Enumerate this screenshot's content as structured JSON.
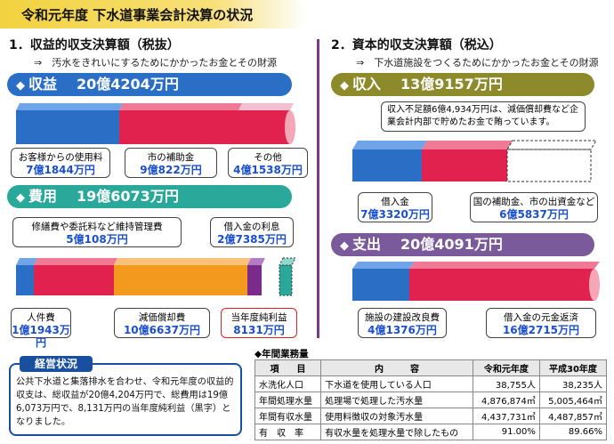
{
  "title": "令和元年度 下水道事業会計決算の状況",
  "left": {
    "heading": "1．収益的収支決算額（税抜）",
    "note": "⇒　汚水をきれいにするためにかかったお金とその財源",
    "revenue_label": "収益",
    "revenue_total": "20億4204万円",
    "revenue_items": [
      {
        "label": "お客様からの使用料",
        "value": "7億1844万円"
      },
      {
        "label": "市の補助金",
        "value": "9億822万円"
      },
      {
        "label": "その他",
        "value": "4億1538万円"
      }
    ],
    "expense_label": "費用",
    "expense_total": "19億6073万円",
    "expense_items": [
      {
        "label": "修繕費や委託料など維持管理費",
        "value": "5億108万円"
      },
      {
        "label": "借入金の利息",
        "value": "2億7385万円"
      },
      {
        "label": "人件費",
        "value": "1億1943万円"
      },
      {
        "label": "減価償却費",
        "value": "10億6637万円"
      },
      {
        "label": "当年度純利益",
        "value": "8131万円"
      }
    ]
  },
  "right": {
    "heading": "2．資本的収支決算額（税込）",
    "note": "⇒　下水道施設をつくるためにかかったお金とその財源",
    "income_label": "収入",
    "income_total": "13億9157万円",
    "shortfall_note": "収入不足額6億4,934万円は、減価償却費など企業会計内部で貯めたお金で賄っています。",
    "income_items": [
      {
        "label": "借入金",
        "value": "7億3320万円"
      },
      {
        "label": "国の補助金、市の出資金など",
        "value": "6億5837万円"
      }
    ],
    "outlay_label": "支出",
    "outlay_total": "20億4091万円",
    "outlay_items": [
      {
        "label": "施設の建設改良費",
        "value": "4億1376万円"
      },
      {
        "label": "借入金の元金返済",
        "value": "16億2715万円"
      }
    ]
  },
  "status": {
    "heading": "経営状況",
    "text": "公共下水道と集落排水を合わせ、令和元年度の収益的収支は、総収益が20億4,204万円で、総費用は19億6,073万円で、8,131万円の当年度純利益（黒字）となりました。"
  },
  "table": {
    "caption": "◆年間業務量",
    "headers": [
      "項　　目",
      "内　　　容",
      "令和元年度",
      "平成30年度"
    ],
    "rows": [
      [
        "水洗化人口",
        "下水道を使用している人口",
        "38,755人",
        "38,235人"
      ],
      [
        "年間処理水量",
        "処理場で処理した汚水量",
        "4,876,874㎥",
        "5,005,464㎥"
      ],
      [
        "年間有収水量",
        "使用料徴収の対象汚水量",
        "4,437,731㎥",
        "4,487,857㎥"
      ],
      [
        "有　収　率",
        "有収水量を処理水量で除したもの",
        "91.00%",
        "89.66%"
      ]
    ]
  },
  "colors": {
    "blue": "#2a6ec6",
    "red": "#e2224e",
    "orange": "#f39a1e",
    "teal": "#2aa89a",
    "olive": "#8c8a2a",
    "purple": "#7a2b8c",
    "navy": "#1a4fa0"
  }
}
